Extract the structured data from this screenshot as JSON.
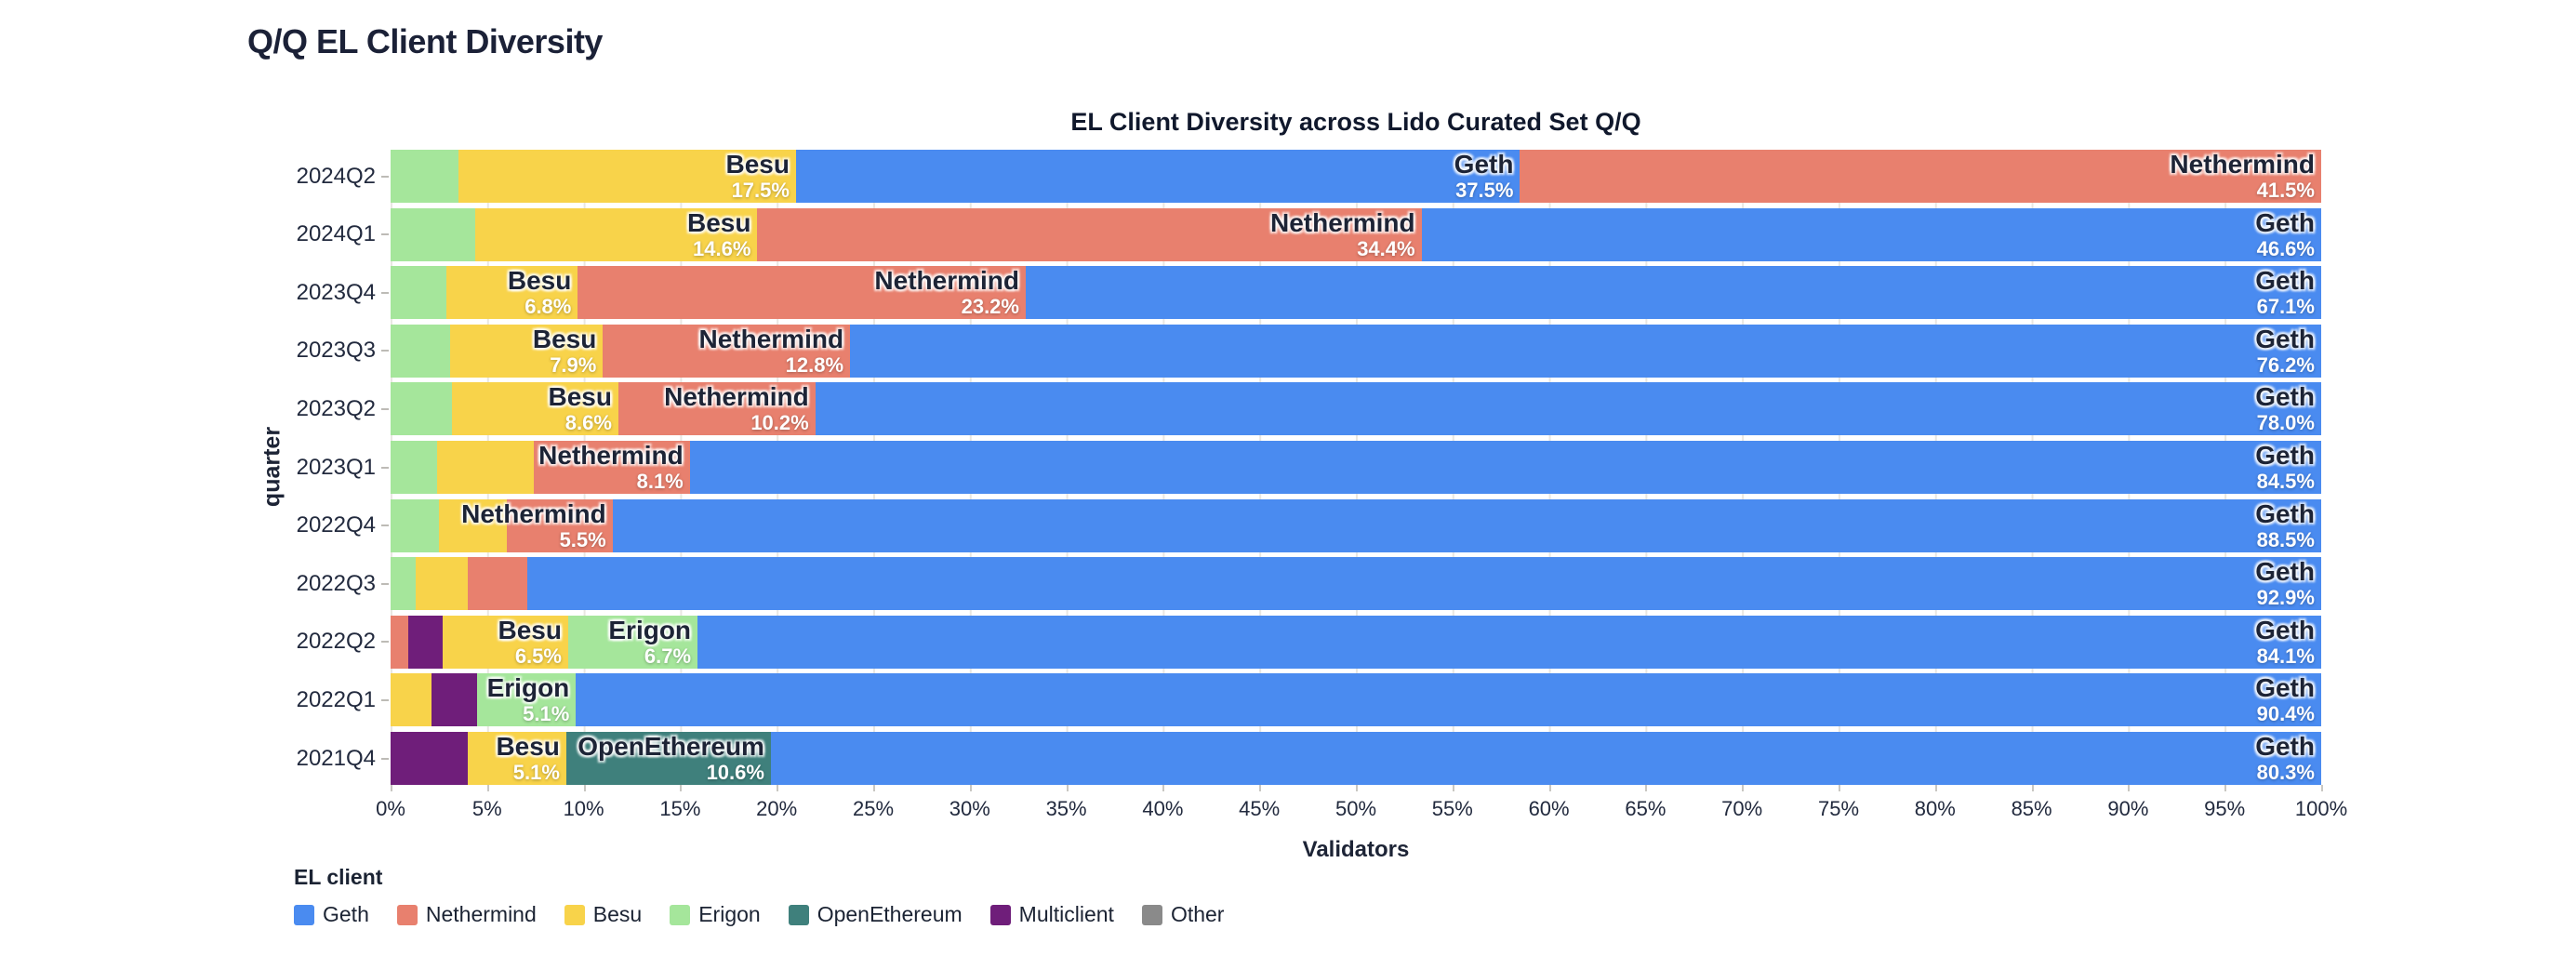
{
  "page": {
    "title": "Q/Q EL Client Diversity"
  },
  "chart_data": {
    "type": "bar",
    "orientation": "horizontal",
    "stacked": true,
    "title": "EL Client Diversity across Lido Curated Set Q/Q",
    "xlabel": "Validators",
    "ylabel": "quarter",
    "legend_title": "EL client",
    "legend_position": "bottom-left",
    "grid": "vertical, every 5%",
    "xlim": [
      0,
      100
    ],
    "x_tick_labels": [
      "0%",
      "5%",
      "10%",
      "15%",
      "20%",
      "25%",
      "30%",
      "35%",
      "40%",
      "45%",
      "50%",
      "55%",
      "60%",
      "65%",
      "70%",
      "75%",
      "80%",
      "85%",
      "90%",
      "95%",
      "100%"
    ],
    "unit": "%",
    "colors": {
      "Geth": "#4a8bf0",
      "Nethermind": "#e8806e",
      "Besu": "#f8d34a",
      "Erigon": "#a5e69b",
      "OpenEthereum": "#3f807c",
      "Multiclient": "#6f1e7a",
      "Other": "#8a8a8a"
    },
    "legend_items": [
      "Geth",
      "Nethermind",
      "Besu",
      "Erigon",
      "OpenEthereum",
      "Multiclient",
      "Other"
    ],
    "categories": [
      "2024Q2",
      "2024Q1",
      "2023Q4",
      "2023Q3",
      "2023Q2",
      "2023Q1",
      "2022Q4",
      "2022Q3",
      "2022Q2",
      "2022Q1",
      "2021Q4"
    ],
    "rows": [
      {
        "quarter": "2024Q2",
        "segments": [
          {
            "client": "Erigon",
            "value": 3.5,
            "labeled": false
          },
          {
            "client": "Besu",
            "value": 17.5,
            "labeled": true
          },
          {
            "client": "Geth",
            "value": 37.5,
            "labeled": true
          },
          {
            "client": "Nethermind",
            "value": 41.5,
            "labeled": true
          }
        ]
      },
      {
        "quarter": "2024Q1",
        "segments": [
          {
            "client": "Erigon",
            "value": 4.4,
            "labeled": false
          },
          {
            "client": "Besu",
            "value": 14.6,
            "labeled": true
          },
          {
            "client": "Nethermind",
            "value": 34.4,
            "labeled": true
          },
          {
            "client": "Geth",
            "value": 46.6,
            "labeled": true
          }
        ]
      },
      {
        "quarter": "2023Q4",
        "segments": [
          {
            "client": "Erigon",
            "value": 2.9,
            "labeled": false
          },
          {
            "client": "Besu",
            "value": 6.8,
            "labeled": true
          },
          {
            "client": "Nethermind",
            "value": 23.2,
            "labeled": true
          },
          {
            "client": "Geth",
            "value": 67.1,
            "labeled": true
          }
        ]
      },
      {
        "quarter": "2023Q3",
        "segments": [
          {
            "client": "Erigon",
            "value": 3.1,
            "labeled": false
          },
          {
            "client": "Besu",
            "value": 7.9,
            "labeled": true
          },
          {
            "client": "Nethermind",
            "value": 12.8,
            "labeled": true
          },
          {
            "client": "Geth",
            "value": 76.2,
            "labeled": true
          }
        ]
      },
      {
        "quarter": "2023Q2",
        "segments": [
          {
            "client": "Erigon",
            "value": 3.2,
            "labeled": false
          },
          {
            "client": "Besu",
            "value": 8.6,
            "labeled": true
          },
          {
            "client": "Nethermind",
            "value": 10.2,
            "labeled": true
          },
          {
            "client": "Geth",
            "value": 78.0,
            "labeled": true
          }
        ]
      },
      {
        "quarter": "2023Q1",
        "segments": [
          {
            "client": "Erigon",
            "value": 2.4,
            "labeled": false
          },
          {
            "client": "Besu",
            "value": 5.0,
            "labeled": false
          },
          {
            "client": "Nethermind",
            "value": 8.1,
            "labeled": true
          },
          {
            "client": "Geth",
            "value": 84.5,
            "labeled": true
          }
        ]
      },
      {
        "quarter": "2022Q4",
        "segments": [
          {
            "client": "Erigon",
            "value": 2.5,
            "labeled": false
          },
          {
            "client": "Besu",
            "value": 3.5,
            "labeled": false
          },
          {
            "client": "Nethermind",
            "value": 5.5,
            "labeled": true
          },
          {
            "client": "Geth",
            "value": 88.5,
            "labeled": true
          }
        ]
      },
      {
        "quarter": "2022Q3",
        "segments": [
          {
            "client": "Erigon",
            "value": 1.3,
            "labeled": false
          },
          {
            "client": "Besu",
            "value": 2.7,
            "labeled": false
          },
          {
            "client": "Nethermind",
            "value": 3.1,
            "labeled": false
          },
          {
            "client": "Geth",
            "value": 92.9,
            "labeled": true
          }
        ]
      },
      {
        "quarter": "2022Q2",
        "segments": [
          {
            "client": "Nethermind",
            "value": 0.9,
            "labeled": false
          },
          {
            "client": "Multiclient",
            "value": 1.8,
            "labeled": false
          },
          {
            "client": "Besu",
            "value": 6.5,
            "labeled": true
          },
          {
            "client": "Erigon",
            "value": 6.7,
            "labeled": true
          },
          {
            "client": "Geth",
            "value": 84.1,
            "labeled": true
          }
        ]
      },
      {
        "quarter": "2022Q1",
        "segments": [
          {
            "client": "Besu",
            "value": 2.1,
            "labeled": false
          },
          {
            "client": "Multiclient",
            "value": 2.4,
            "labeled": false
          },
          {
            "client": "Erigon",
            "value": 5.1,
            "labeled": true
          },
          {
            "client": "Geth",
            "value": 90.4,
            "labeled": true
          }
        ]
      },
      {
        "quarter": "2021Q4",
        "segments": [
          {
            "client": "Multiclient",
            "value": 4.0,
            "labeled": false
          },
          {
            "client": "Besu",
            "value": 5.1,
            "labeled": true
          },
          {
            "client": "OpenEthereum",
            "value": 10.6,
            "labeled": true
          },
          {
            "client": "Geth",
            "value": 80.3,
            "labeled": true
          }
        ]
      }
    ]
  }
}
